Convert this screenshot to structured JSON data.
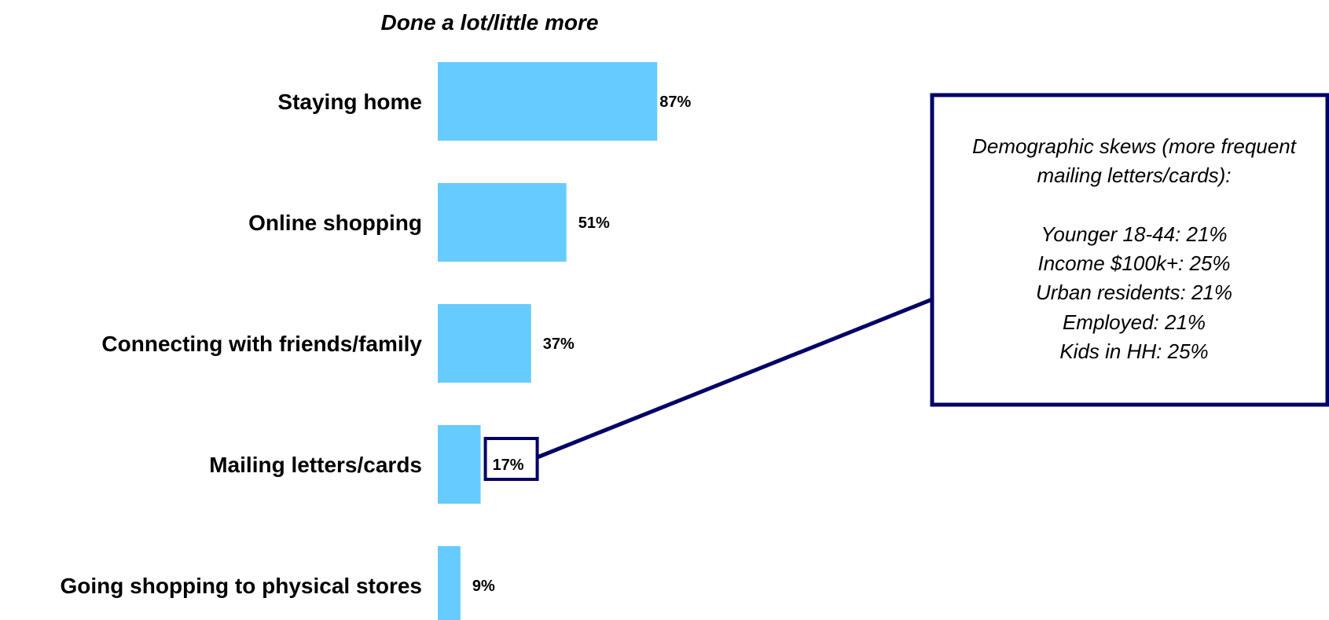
{
  "chart_data": {
    "type": "bar",
    "orientation": "horizontal",
    "title": "Done a lot/little more",
    "categories": [
      "Staying home",
      "Online shopping",
      "Connecting with friends/family",
      "Mailing letters/cards",
      "Going shopping to physical stores"
    ],
    "values": [
      87,
      51,
      37,
      17,
      9
    ],
    "value_labels": [
      "87%",
      "51%",
      "37%",
      "17%",
      "9%"
    ],
    "unit": "%",
    "xlim": [
      0,
      100
    ],
    "grid": false,
    "bar_color": "#66CCFF",
    "highlighted_category": "Mailing letters/cards",
    "annotation": {
      "lines": [
        "Demographic skews (more frequent",
        "mailing letters/cards):",
        "",
        "Younger 18-44: 21%",
        "Income $100k+: 25%",
        "Urban residents: 21%",
        "Employed: 21%",
        "Kids in HH: 25%"
      ],
      "border_color": "#000066"
    }
  }
}
